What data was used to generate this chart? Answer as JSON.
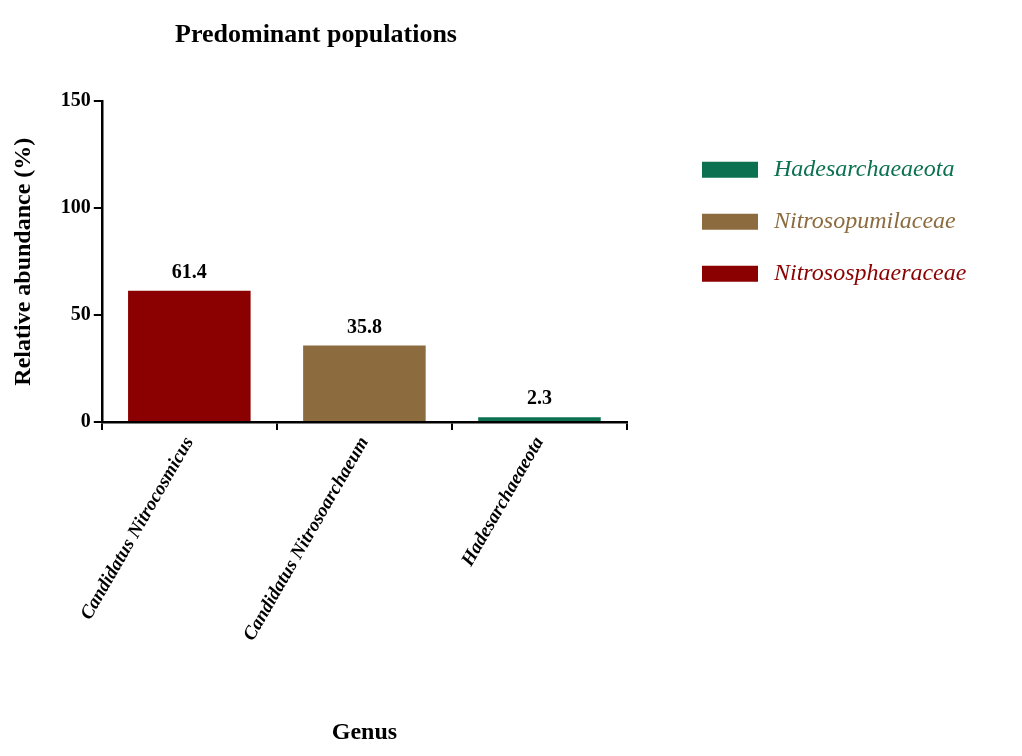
{
  "chart_data": {
    "type": "bar",
    "title": "Predominant populations",
    "xlabel": "Genus",
    "ylabel": "Relative abundance (%)",
    "categories": [
      "Candidatus Nitrocosmicus",
      "Candidatus Nitrosoarchaeum",
      "Hadesarchaeaeota"
    ],
    "series": [
      {
        "name": "Hadesarchaeaeota",
        "color": "#0b7150",
        "values": [
          null,
          null,
          2.3
        ]
      },
      {
        "name": "Nitrosopumilaceae",
        "color": "#8c6b3e",
        "values": [
          null,
          35.8,
          null
        ]
      },
      {
        "name": "Nitrososphaeraceae",
        "color": "#8b0000",
        "values": [
          61.4,
          null,
          null
        ]
      }
    ],
    "ylim": [
      0,
      150
    ],
    "yticks": [
      0,
      50,
      100,
      150
    ],
    "grid": false,
    "legend": "right",
    "data_labels": true
  }
}
